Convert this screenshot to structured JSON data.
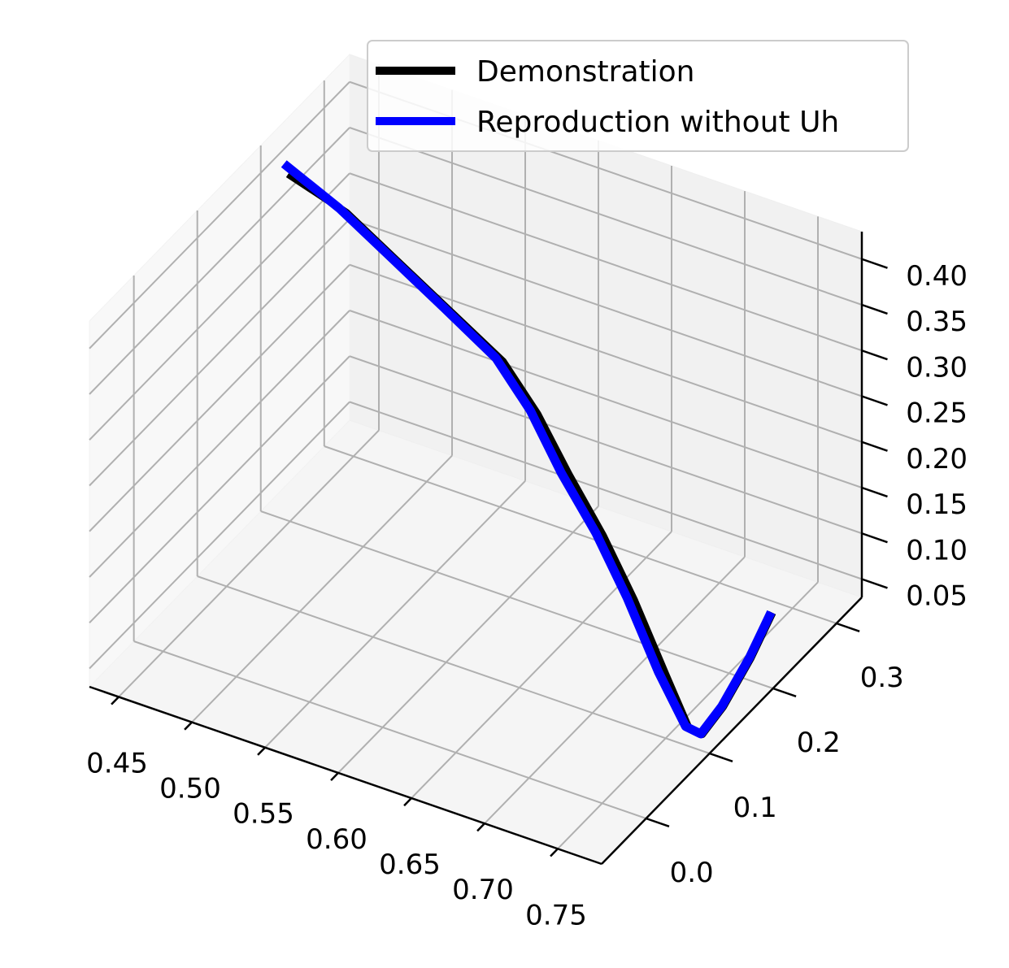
{
  "chart_data": {
    "type": "line",
    "projection": "3d",
    "title": "",
    "xlabel": "",
    "ylabel": "",
    "zlabel": "",
    "grid": true,
    "legend_position": "top-right",
    "xlim": [
      0.43,
      0.78
    ],
    "ylim": [
      -0.07,
      0.34
    ],
    "zlim": [
      0.03,
      0.43
    ],
    "x_ticks": [
      0.45,
      0.5,
      0.55,
      0.6,
      0.65,
      0.7,
      0.75
    ],
    "x_tick_labels": [
      "0.45",
      "0.50",
      "0.55",
      "0.60",
      "0.65",
      "0.70",
      "0.75"
    ],
    "y_ticks": [
      0.0,
      0.1,
      0.2,
      0.3
    ],
    "y_tick_labels": [
      "0.0",
      "0.1",
      "0.2",
      "0.3"
    ],
    "z_ticks": [
      0.05,
      0.1,
      0.15,
      0.2,
      0.25,
      0.3,
      0.35,
      0.4
    ],
    "z_tick_labels": [
      "0.05",
      "0.10",
      "0.15",
      "0.20",
      "0.25",
      "0.30",
      "0.35",
      "0.40"
    ],
    "series": [
      {
        "name": "Demonstration",
        "color": "#000000",
        "points": [
          [
            0.44,
            0.22,
            0.39
          ],
          [
            0.48,
            0.22,
            0.37
          ],
          [
            0.52,
            0.21,
            0.345
          ],
          [
            0.56,
            0.2,
            0.32
          ],
          [
            0.6,
            0.19,
            0.295
          ],
          [
            0.63,
            0.175,
            0.265
          ],
          [
            0.66,
            0.155,
            0.23
          ],
          [
            0.69,
            0.14,
            0.19
          ],
          [
            0.72,
            0.12,
            0.15
          ],
          [
            0.75,
            0.1,
            0.1
          ],
          [
            0.77,
            0.09,
            0.06
          ],
          [
            0.775,
            0.1,
            0.048
          ],
          [
            0.772,
            0.14,
            0.048
          ],
          [
            0.765,
            0.2,
            0.055
          ],
          [
            0.758,
            0.25,
            0.065
          ]
        ]
      },
      {
        "name": "Reproduction without Uh",
        "color": "#0000ff",
        "points": [
          [
            0.435,
            0.225,
            0.395
          ],
          [
            0.475,
            0.22,
            0.372
          ],
          [
            0.515,
            0.21,
            0.347
          ],
          [
            0.555,
            0.2,
            0.322
          ],
          [
            0.595,
            0.19,
            0.296
          ],
          [
            0.625,
            0.175,
            0.266
          ],
          [
            0.655,
            0.155,
            0.228
          ],
          [
            0.685,
            0.14,
            0.19
          ],
          [
            0.715,
            0.12,
            0.15
          ],
          [
            0.745,
            0.1,
            0.1
          ],
          [
            0.768,
            0.09,
            0.06
          ],
          [
            0.774,
            0.1,
            0.048
          ],
          [
            0.771,
            0.14,
            0.048
          ],
          [
            0.764,
            0.2,
            0.055
          ],
          [
            0.757,
            0.25,
            0.065
          ]
        ]
      }
    ]
  }
}
